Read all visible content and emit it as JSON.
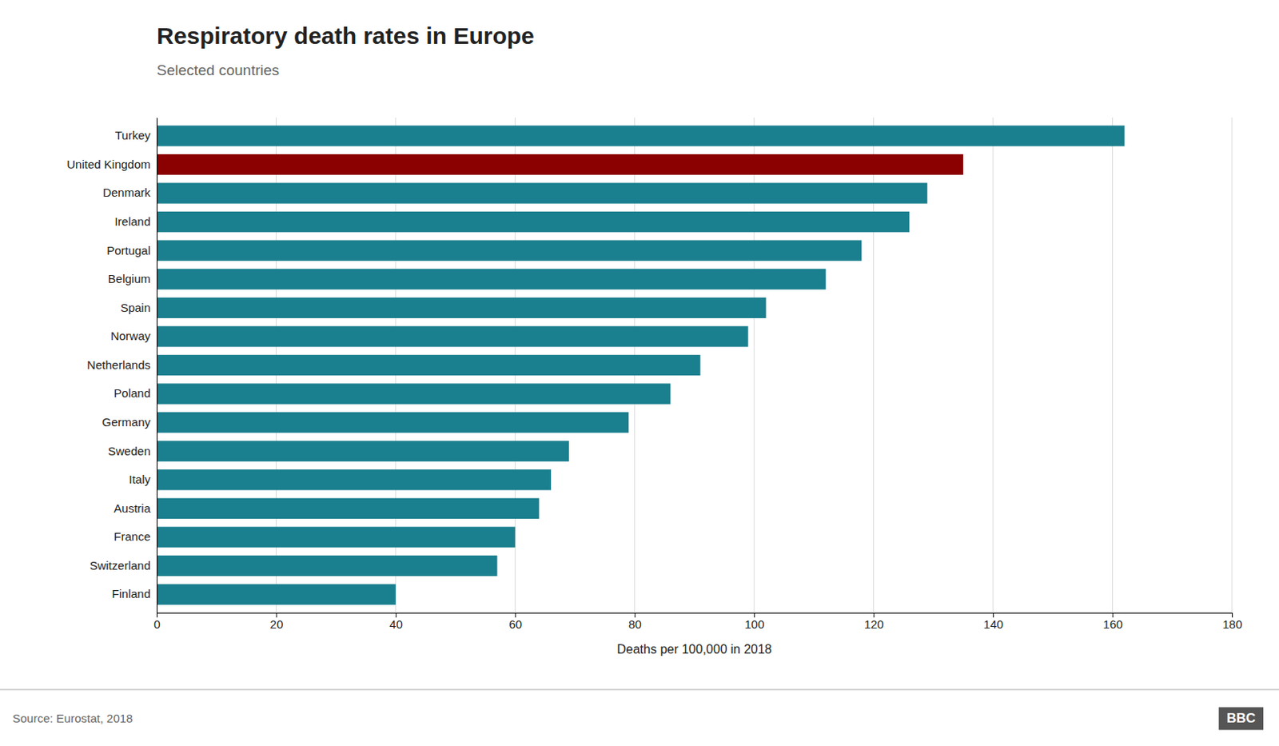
{
  "chart_data": {
    "type": "bar",
    "orientation": "horizontal",
    "title": "Respiratory death rates in Europe",
    "subtitle": "Selected countries",
    "xlabel": "Deaths per 100,000 in 2018",
    "source": "Source: Eurostat, 2018",
    "annotations": [
      "BBC"
    ],
    "categories": [
      "Finland",
      "Switzerland",
      "France",
      "Austria",
      "Italy",
      "Sweden",
      "Germany",
      "Poland",
      "Netherlands",
      "Norway",
      "Spain",
      "Belgium",
      "Portugal",
      "Ireland",
      "Denmark",
      "United Kingdom",
      "Turkey"
    ],
    "values": [
      40,
      57,
      60,
      64,
      66,
      69,
      79,
      86,
      91,
      99,
      102,
      112,
      118,
      126,
      129,
      135,
      162
    ],
    "colors": [
      "#1a7f8e",
      "#1a7f8e",
      "#1a7f8e",
      "#1a7f8e",
      "#1a7f8e",
      "#1a7f8e",
      "#1a7f8e",
      "#1a7f8e",
      "#1a7f8e",
      "#1a7f8e",
      "#1a7f8e",
      "#1a7f8e",
      "#1a7f8e",
      "#1a7f8e",
      "#1a7f8e",
      "#8b0000",
      "#1a7f8e"
    ],
    "xlim": [
      0,
      180
    ],
    "xticks": [
      0,
      20,
      40,
      60,
      80,
      100,
      120,
      140,
      160,
      180
    ],
    "grid": true
  }
}
